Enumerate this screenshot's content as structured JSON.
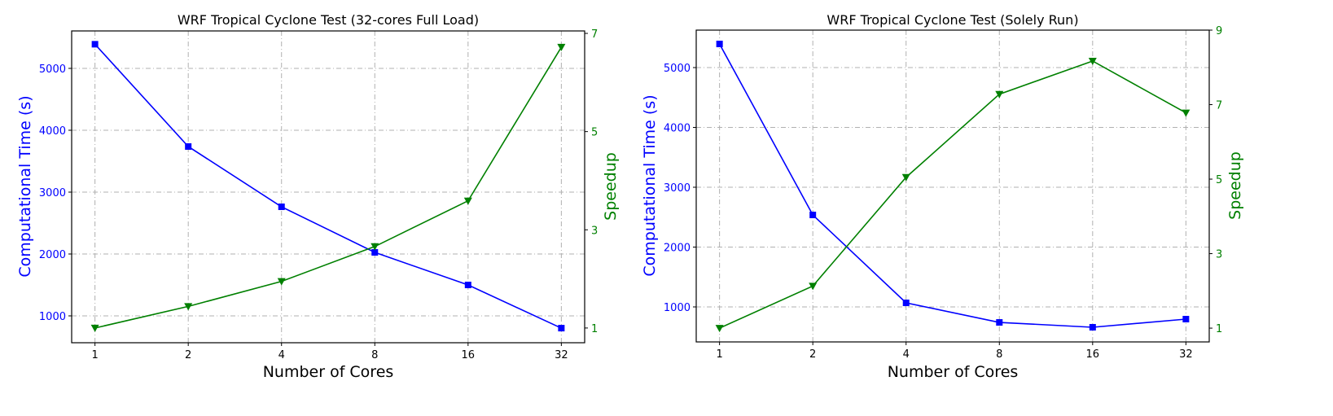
{
  "chart_data": [
    {
      "type": "line",
      "title": "WRF Tropical Cyclone Test (32-cores Full Load)",
      "xlabel": "Number of Cores",
      "ylabel": "Computational Time (s)",
      "y2label": "Speedup",
      "x_scale": "log2 (categorical ticks)",
      "categories": [
        "1",
        "2",
        "4",
        "8",
        "16",
        "32"
      ],
      "ylim": [
        566,
        5605
      ],
      "y2lim": [
        0.7,
        7.05
      ],
      "yticks": [
        1000,
        2000,
        3000,
        4000,
        5000
      ],
      "y2ticks": [
        1,
        3,
        5,
        7
      ],
      "grid": true,
      "series": [
        {
          "axis": "left",
          "color": "#0000ff",
          "marker": "square",
          "values": [
            5390,
            3737,
            2763,
            2026,
            1500,
            802
          ]
        },
        {
          "axis": "right",
          "color": "#008000",
          "marker": "triangle-down",
          "values": [
            1.0,
            1.44,
            1.95,
            2.66,
            3.59,
            6.72
          ]
        }
      ]
    },
    {
      "type": "line",
      "title": "WRF Tropical Cyclone Test (Solely Run)",
      "xlabel": "Number of Cores",
      "ylabel": "Computational Time (s)",
      "y2label": "Speedup",
      "x_scale": "log2 (categorical ticks)",
      "categories": [
        "1",
        "2",
        "4",
        "8",
        "16",
        "32"
      ],
      "ylim": [
        415,
        5626
      ],
      "y2lim": [
        0.63,
        9.0
      ],
      "yticks": [
        1000,
        2000,
        3000,
        4000,
        5000
      ],
      "y2ticks": [
        1,
        3,
        5,
        7,
        9
      ],
      "grid": true,
      "series": [
        {
          "axis": "left",
          "color": "#0000ff",
          "marker": "square",
          "values": [
            5395,
            2537,
            1068,
            741,
            660,
            796
          ]
        },
        {
          "axis": "right",
          "color": "#008000",
          "marker": "triangle-down",
          "values": [
            1.0,
            2.13,
            5.05,
            7.28,
            8.17,
            6.78
          ]
        }
      ]
    }
  ]
}
